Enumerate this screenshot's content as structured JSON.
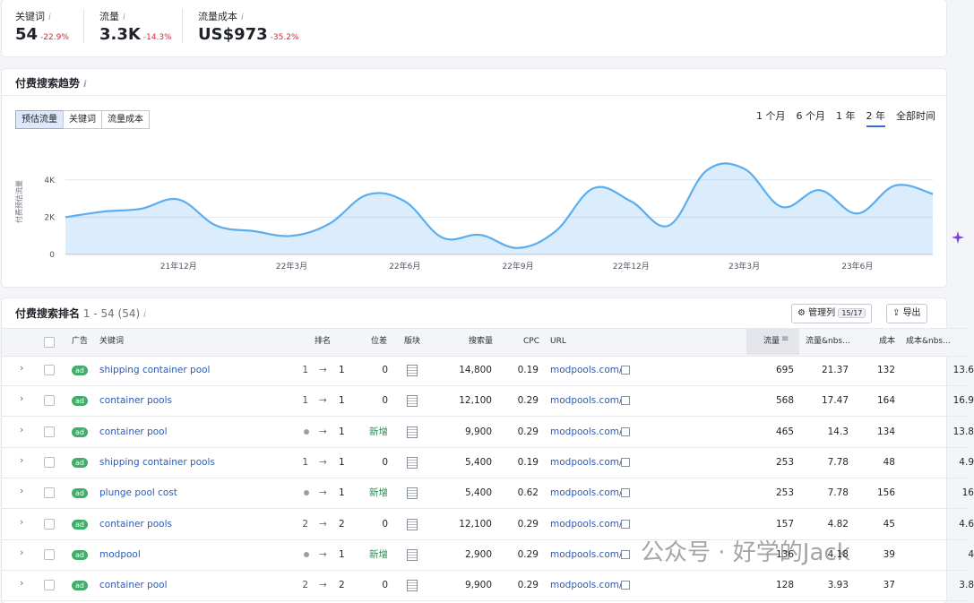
{
  "metrics": [
    {
      "label": "关键词",
      "value": "54",
      "change": "-22.9%"
    },
    {
      "label": "流量",
      "value": "3.3K",
      "change": "-14.3%"
    },
    {
      "label": "流量成本",
      "value": "US$973",
      "change": "-35.2%"
    }
  ],
  "trend": {
    "title": "付费搜索趋势",
    "tabs": [
      "预估流量",
      "关键词",
      "流量成本"
    ],
    "periods": [
      "1 个月",
      "6 个月",
      "1 年",
      "2 年",
      "全部时间"
    ]
  },
  "chart_data": {
    "type": "area",
    "y_label": "付费预估流量",
    "color": "#5aaef0",
    "categories": [
      null,
      null,
      null,
      "21年12月",
      null,
      null,
      "22年3月",
      null,
      null,
      "22年6月",
      null,
      null,
      "22年9月",
      null,
      null,
      "22年12月",
      null,
      null,
      "23年3月",
      null,
      null,
      "23年6月",
      null,
      null
    ],
    "values": [
      2000,
      2300,
      2450,
      2950,
      1550,
      1250,
      1000,
      1650,
      3200,
      2850,
      900,
      1050,
      350,
      1250,
      3550,
      2850,
      1550,
      4500,
      4600,
      2550,
      3450,
      2200,
      3700,
      3250
    ],
    "ylim": [
      0,
      5000
    ],
    "yticks": [
      0,
      {
        "value": 2000,
        "label": "2K"
      },
      {
        "value": 4000,
        "label": "4K"
      }
    ],
    "grid": true
  },
  "table": {
    "title": "付费搜索排名",
    "range": "1 - 54 (54)",
    "manage_button": "管理列",
    "manage_count": "15/17",
    "export_button": "导出",
    "ad_badge": "ad",
    "columns": [
      "广告",
      "关键词",
      "排名",
      "位差",
      "版块",
      "搜索量",
      "CPC",
      "URL",
      "流量",
      "流量&nbs...",
      "成本",
      "成本&nbs..."
    ],
    "rows": [
      {
        "keyword": "shipping container pool",
        "rank_prev": "1",
        "rank": "1",
        "diff": "0",
        "volume": "14,800",
        "cpc": "0.19",
        "url": "modpools.com/",
        "traffic": "695",
        "traffic_pct": "21.37",
        "cost": "132",
        "cost_pct": "13.6"
      },
      {
        "keyword": "container pools",
        "rank_prev": "1",
        "rank": "1",
        "diff": "0",
        "volume": "12,100",
        "cpc": "0.29",
        "url": "modpools.com/",
        "traffic": "568",
        "traffic_pct": "17.47",
        "cost": "164",
        "cost_pct": "16.9"
      },
      {
        "keyword": "container pool",
        "rank_prev": null,
        "rank": "1",
        "diff": "新增",
        "volume": "9,900",
        "cpc": "0.29",
        "url": "modpools.com/",
        "traffic": "465",
        "traffic_pct": "14.3",
        "cost": "134",
        "cost_pct": "13.8"
      },
      {
        "keyword": "shipping container pools",
        "rank_prev": "1",
        "rank": "1",
        "diff": "0",
        "volume": "5,400",
        "cpc": "0.19",
        "url": "modpools.com/",
        "traffic": "253",
        "traffic_pct": "7.78",
        "cost": "48",
        "cost_pct": "4.9"
      },
      {
        "keyword": "plunge pool cost",
        "rank_prev": null,
        "rank": "1",
        "diff": "新增",
        "volume": "5,400",
        "cpc": "0.62",
        "url": "modpools.com/",
        "traffic": "253",
        "traffic_pct": "7.78",
        "cost": "156",
        "cost_pct": "16"
      },
      {
        "keyword": "container pools",
        "rank_prev": "2",
        "rank": "2",
        "diff": "0",
        "volume": "12,100",
        "cpc": "0.29",
        "url": "modpools.com/",
        "traffic": "157",
        "traffic_pct": "4.82",
        "cost": "45",
        "cost_pct": "4.6"
      },
      {
        "keyword": "modpool",
        "rank_prev": null,
        "rank": "1",
        "diff": "新增",
        "volume": "2,900",
        "cpc": "0.29",
        "url": "modpools.com/",
        "traffic": "136",
        "traffic_pct": "4.18",
        "cost": "39",
        "cost_pct": "4"
      },
      {
        "keyword": "container pool",
        "rank_prev": "2",
        "rank": "2",
        "diff": "0",
        "volume": "9,900",
        "cpc": "0.29",
        "url": "modpools.com/",
        "traffic": "128",
        "traffic_pct": "3.93",
        "cost": "37",
        "cost_pct": "3.8"
      }
    ]
  },
  "watermark": "公众号 · 好学的Jack"
}
